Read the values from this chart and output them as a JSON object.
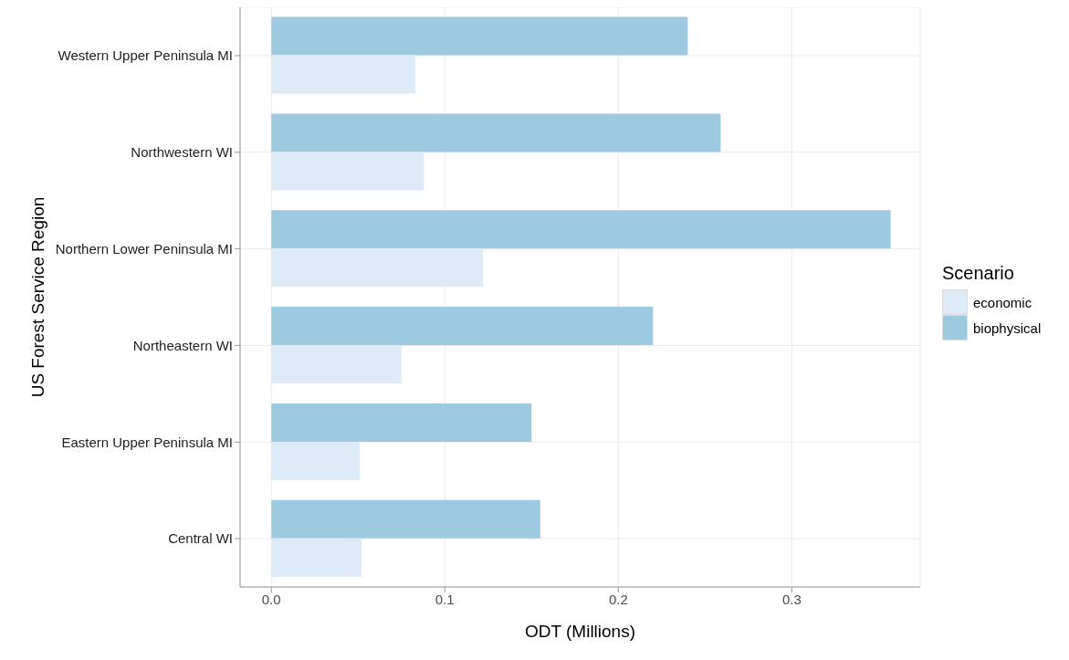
{
  "chart_data": {
    "type": "bar",
    "orientation": "horizontal",
    "xlabel": "ODT (Millions)",
    "ylabel": "US Forest Service Region",
    "legend_title": "Scenario",
    "legend": "right",
    "categories": [
      "Western Upper Peninsula MI",
      "Northwestern WI",
      "Northern Lower Peninsula MI",
      "Northeastern WI",
      "Eastern Upper Peninsula MI",
      "Central WI"
    ],
    "series": [
      {
        "name": "economic",
        "color": "#deebf7",
        "values": [
          0.083,
          0.088,
          0.122,
          0.075,
          0.051,
          0.052
        ]
      },
      {
        "name": "biophysical",
        "color": "#9ecae1",
        "values": [
          0.24,
          0.259,
          0.357,
          0.22,
          0.15,
          0.155
        ]
      }
    ],
    "xlim": [
      -0.018,
      0.374
    ],
    "xticks": [
      {
        "value": 0,
        "label": "0.0"
      },
      {
        "value": 0.1,
        "label": "0.1"
      },
      {
        "value": 0.2,
        "label": "0.2"
      },
      {
        "value": 0.3,
        "label": "0.3"
      }
    ],
    "grid": true
  }
}
